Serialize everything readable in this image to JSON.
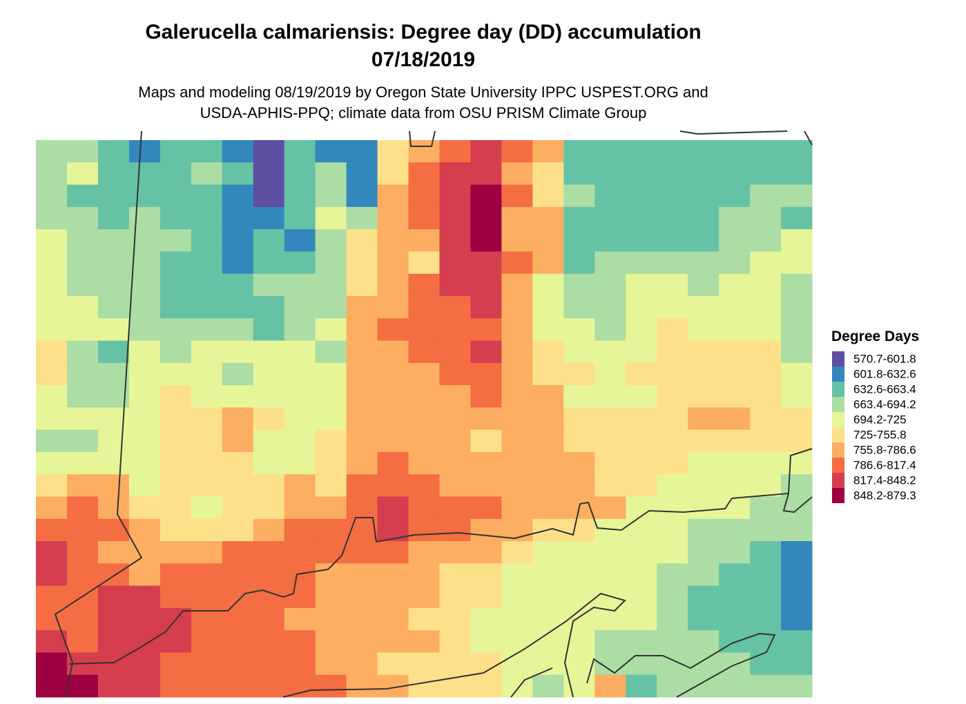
{
  "map": {
    "title": [
      "Galerucella calmariensis: Degree day (DD) accumulation",
      "07/18/2019"
    ],
    "subtitle": [
      "Maps and modeling 08/19/2019 by Oregon State University IPPC USPEST.ORG and",
      "USDA-APHIS-PPQ; climate data from OSU PRISM Climate Group"
    ],
    "legend": {
      "title": "Degree Days",
      "items": [
        {
          "label": "570.7-601.8",
          "color": "#5e4fa2"
        },
        {
          "label": "601.8-632.6",
          "color": "#3288bd"
        },
        {
          "label": "632.6-663.4",
          "color": "#66c2a5"
        },
        {
          "label": "663.4-694.2",
          "color": "#abdda4"
        },
        {
          "label": "694.2-725",
          "color": "#e6f598"
        },
        {
          "label": "725-755.8",
          "color": "#fee08b"
        },
        {
          "label": "755.8-786.6",
          "color": "#fdae61"
        },
        {
          "label": "786.6-817.4",
          "color": "#f46d43"
        },
        {
          "label": "817.4-848.2",
          "color": "#d53e4f"
        },
        {
          "label": "848.2-879.3",
          "color": "#9e0142"
        }
      ]
    },
    "raster": [
      [
        3,
        3,
        2,
        1,
        2,
        2,
        1,
        0,
        2,
        1,
        1,
        5,
        6,
        7,
        8,
        7,
        6,
        2,
        2,
        2,
        2,
        2,
        2,
        2,
        2
      ],
      [
        3,
        4,
        2,
        2,
        2,
        3,
        2,
        0,
        2,
        3,
        1,
        5,
        7,
        8,
        8,
        6,
        5,
        2,
        2,
        2,
        2,
        2,
        2,
        2,
        2
      ],
      [
        3,
        2,
        2,
        2,
        2,
        2,
        1,
        0,
        2,
        3,
        1,
        6,
        7,
        8,
        9,
        7,
        5,
        3,
        2,
        2,
        2,
        2,
        2,
        3,
        3
      ],
      [
        3,
        3,
        2,
        3,
        2,
        2,
        1,
        1,
        2,
        4,
        3,
        6,
        7,
        8,
        9,
        6,
        6,
        2,
        2,
        2,
        2,
        2,
        3,
        3,
        2
      ],
      [
        4,
        3,
        3,
        3,
        3,
        2,
        1,
        2,
        1,
        3,
        5,
        6,
        6,
        8,
        9,
        6,
        6,
        2,
        2,
        2,
        2,
        2,
        3,
        3,
        4
      ],
      [
        4,
        3,
        3,
        3,
        2,
        2,
        1,
        2,
        2,
        3,
        5,
        6,
        5,
        8,
        8,
        7,
        6,
        2,
        3,
        3,
        3,
        3,
        3,
        4,
        4
      ],
      [
        4,
        3,
        3,
        3,
        2,
        2,
        2,
        3,
        3,
        3,
        5,
        6,
        7,
        8,
        8,
        6,
        4,
        3,
        3,
        4,
        4,
        3,
        4,
        4,
        3
      ],
      [
        4,
        4,
        3,
        3,
        2,
        2,
        2,
        2,
        3,
        3,
        6,
        6,
        7,
        7,
        8,
        6,
        4,
        3,
        3,
        4,
        4,
        4,
        4,
        4,
        3
      ],
      [
        4,
        4,
        4,
        3,
        3,
        3,
        3,
        2,
        3,
        4,
        6,
        7,
        7,
        7,
        7,
        6,
        4,
        4,
        3,
        4,
        5,
        4,
        4,
        4,
        3
      ],
      [
        5,
        3,
        2,
        4,
        3,
        4,
        4,
        4,
        4,
        3,
        6,
        6,
        7,
        7,
        8,
        6,
        5,
        4,
        4,
        4,
        5,
        5,
        5,
        5,
        3
      ],
      [
        5,
        3,
        3,
        4,
        4,
        4,
        3,
        4,
        4,
        4,
        6,
        6,
        6,
        7,
        7,
        6,
        5,
        5,
        4,
        5,
        5,
        5,
        5,
        5,
        4
      ],
      [
        4,
        3,
        3,
        4,
        5,
        4,
        4,
        4,
        4,
        4,
        6,
        6,
        6,
        6,
        7,
        6,
        6,
        4,
        4,
        4,
        5,
        5,
        5,
        5,
        4
      ],
      [
        4,
        4,
        4,
        4,
        5,
        5,
        6,
        5,
        4,
        4,
        6,
        6,
        6,
        6,
        6,
        6,
        6,
        5,
        5,
        5,
        5,
        6,
        6,
        5,
        5
      ],
      [
        3,
        3,
        4,
        4,
        5,
        5,
        6,
        4,
        4,
        5,
        6,
        6,
        6,
        6,
        5,
        6,
        6,
        5,
        5,
        5,
        5,
        5,
        5,
        5,
        5
      ],
      [
        4,
        4,
        4,
        4,
        5,
        5,
        5,
        4,
        4,
        5,
        6,
        7,
        6,
        6,
        6,
        6,
        6,
        6,
        5,
        5,
        5,
        4,
        4,
        4,
        4
      ],
      [
        5,
        6,
        6,
        4,
        5,
        5,
        5,
        5,
        6,
        5,
        7,
        7,
        7,
        6,
        6,
        6,
        6,
        6,
        5,
        5,
        4,
        4,
        4,
        4,
        3
      ],
      [
        6,
        7,
        6,
        5,
        5,
        4,
        5,
        5,
        6,
        6,
        7,
        8,
        7,
        7,
        7,
        6,
        6,
        6,
        6,
        4,
        4,
        4,
        4,
        3,
        3
      ],
      [
        7,
        7,
        7,
        6,
        5,
        5,
        5,
        6,
        7,
        7,
        7,
        8,
        7,
        7,
        6,
        6,
        5,
        5,
        4,
        4,
        4,
        3,
        3,
        3,
        3
      ],
      [
        8,
        7,
        6,
        6,
        6,
        6,
        7,
        7,
        7,
        7,
        7,
        7,
        6,
        6,
        6,
        5,
        4,
        4,
        4,
        4,
        4,
        3,
        3,
        2,
        1
      ],
      [
        8,
        7,
        7,
        6,
        7,
        7,
        7,
        7,
        7,
        6,
        6,
        6,
        6,
        5,
        5,
        4,
        4,
        4,
        4,
        4,
        3,
        3,
        2,
        2,
        1
      ],
      [
        7,
        7,
        8,
        8,
        7,
        7,
        7,
        7,
        7,
        6,
        6,
        6,
        6,
        5,
        5,
        4,
        4,
        4,
        4,
        4,
        3,
        2,
        2,
        2,
        1
      ],
      [
        7,
        7,
        8,
        8,
        8,
        7,
        7,
        7,
        6,
        6,
        6,
        6,
        5,
        5,
        4,
        4,
        4,
        4,
        4,
        4,
        3,
        2,
        2,
        2,
        1
      ],
      [
        8,
        7,
        8,
        8,
        8,
        7,
        7,
        7,
        7,
        6,
        6,
        6,
        6,
        5,
        4,
        4,
        4,
        4,
        3,
        3,
        3,
        3,
        2,
        2,
        2
      ],
      [
        9,
        8,
        8,
        8,
        7,
        7,
        7,
        7,
        7,
        6,
        6,
        5,
        5,
        5,
        5,
        4,
        4,
        4,
        3,
        3,
        3,
        3,
        3,
        2,
        2
      ],
      [
        9,
        9,
        8,
        8,
        7,
        7,
        7,
        7,
        7,
        7,
        6,
        6,
        5,
        5,
        5,
        4,
        3,
        4,
        6,
        2,
        3,
        3,
        3,
        3,
        3
      ]
    ]
  }
}
